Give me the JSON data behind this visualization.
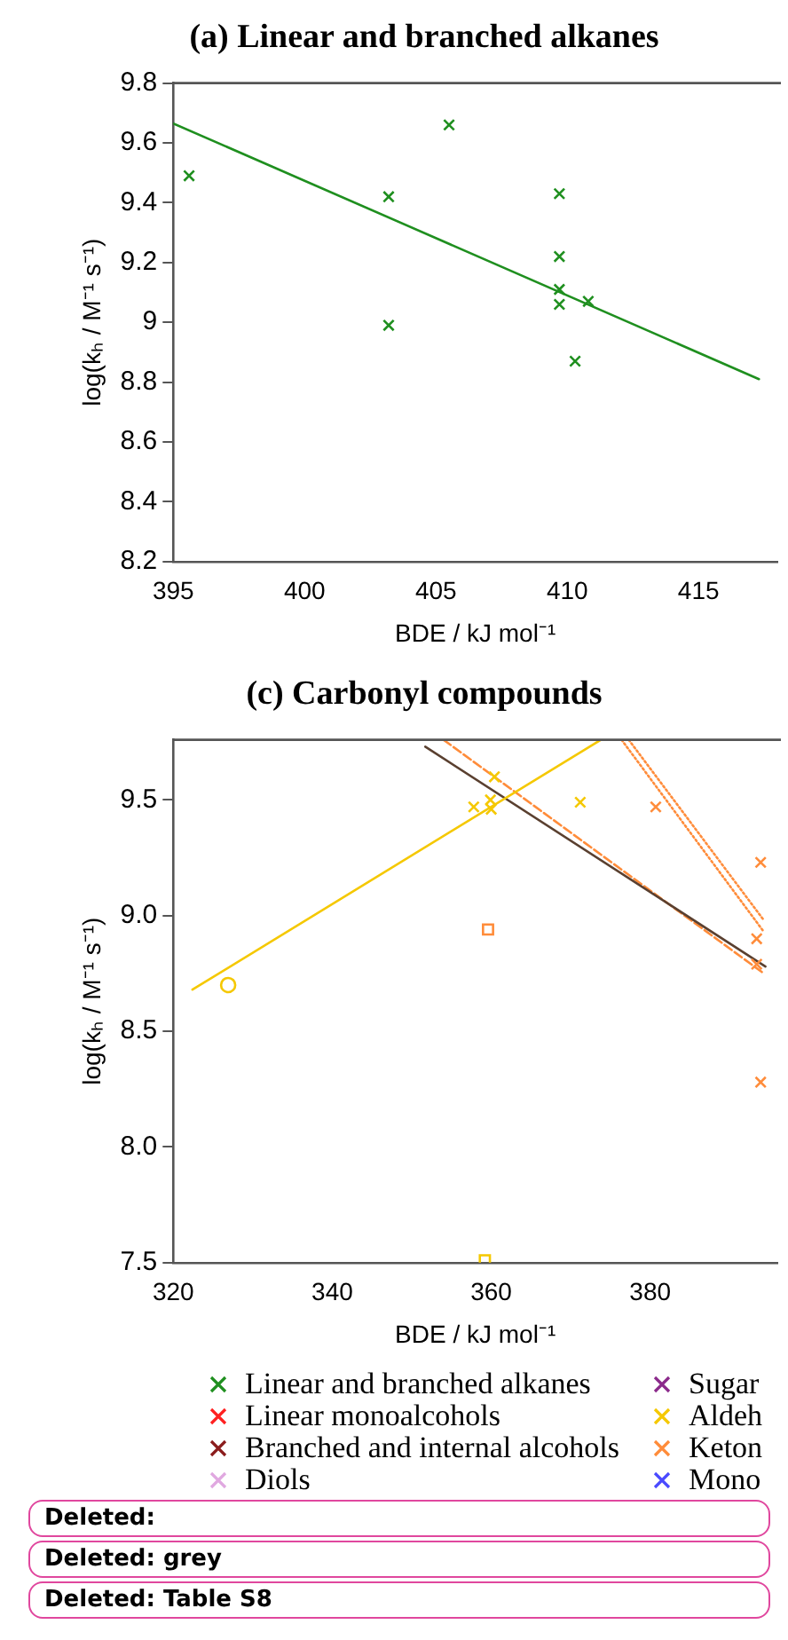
{
  "chart_data": [
    {
      "type": "scatter",
      "title": "(a) Linear and branched alkanes",
      "xlabel": "BDE / kJ mol⁻¹",
      "ylabel": "log(kₕ / M⁻¹ s⁻¹)",
      "xlim": [
        395,
        418
      ],
      "ylim": [
        8.2,
        9.8
      ],
      "xticks": [
        395,
        400,
        405,
        410,
        415
      ],
      "yticks": [
        8.2,
        8.4,
        8.6,
        8.8,
        9.0,
        9.2,
        9.4,
        9.6,
        9.8
      ],
      "series": [
        {
          "type": "scatter",
          "marker": "cross",
          "color": "#1f8f1f",
          "x": [
            395.6,
            403.2,
            403.2,
            405.5,
            409.7,
            409.7,
            409.7,
            409.7,
            410.3,
            410.8
          ],
          "values": [
            9.49,
            9.42,
            8.99,
            9.66,
            9.43,
            9.22,
            9.11,
            9.06,
            8.87,
            9.07
          ]
        },
        {
          "type": "line",
          "marker": "none",
          "line_style": "solid",
          "color": "#1f8f1f",
          "x": [
            395,
            417.3
          ],
          "values": [
            9.665,
            8.81
          ]
        }
      ]
    },
    {
      "type": "scatter",
      "title": "(c) Carbonyl compounds",
      "xlabel": "BDE / kJ mol⁻¹",
      "ylabel": "log(kₕ / M⁻¹ s⁻¹)",
      "xlim": [
        320,
        396
      ],
      "ylim": [
        7.5,
        9.76
      ],
      "xticks": [
        320,
        340,
        360,
        380
      ],
      "yticks": [
        {
          "value": 7.5,
          "label": "7.5"
        },
        {
          "value": 8,
          "label": "8.0"
        },
        {
          "value": 8.5,
          "label": "8.5"
        },
        {
          "value": 9,
          "label": "9.0"
        },
        {
          "value": 9.5,
          "label": "9.5"
        }
      ],
      "legend": "bottom",
      "annotations": [
        "Deleted:",
        "Deleted: grey",
        "Deleted: Table S8"
      ],
      "series": [
        {
          "name": "Linear and branched alkanes",
          "type": "scatter",
          "marker": "cross",
          "color": "#1f8f1f"
        },
        {
          "name": "Linear monoalcohols",
          "type": "scatter",
          "marker": "cross",
          "color": "#ff2020"
        },
        {
          "name": "Branched and internal alcohols",
          "type": "scatter",
          "marker": "cross",
          "color": "#8b1c1c"
        },
        {
          "name": "Diols",
          "type": "scatter",
          "marker": "cross",
          "color": "#e0a8e0"
        },
        {
          "name": "Sugar",
          "type": "scatter",
          "marker": "cross",
          "color": "#8b2a8b"
        },
        {
          "name": "Aldeh",
          "type": "scatter",
          "marker": "cross",
          "color": "#f5c800",
          "x": [
            357.8,
            359.9,
            360.4,
            360.0,
            371.2
          ],
          "values": [
            9.47,
            9.5,
            9.6,
            9.46,
            9.49
          ]
        },
        {
          "name": "Keton",
          "type": "scatter",
          "marker": "cross",
          "color": "#ff8c3a",
          "x": [
            380.7,
            393.9,
            393.4,
            393.4,
            393.9
          ],
          "values": [
            9.47,
            9.23,
            8.9,
            8.79,
            8.28
          ]
        },
        {
          "name": "Mono",
          "type": "scatter",
          "marker": "cross",
          "color": "#4a4aff"
        },
        {
          "type": "scatter",
          "marker": "circle",
          "color": "#f5c800",
          "x": [
            326.9
          ],
          "values": [
            8.7
          ]
        },
        {
          "type": "scatter",
          "marker": "square",
          "color": "#ff8c3a",
          "x": [
            359.6
          ],
          "values": [
            8.94
          ]
        },
        {
          "type": "scatter",
          "marker": "square",
          "color": "#f5c800",
          "x": [
            359.2
          ],
          "values": [
            7.51
          ]
        },
        {
          "type": "line",
          "marker": "none",
          "line_style": "solid",
          "color": "#f5c800",
          "x": [
            322.4,
            373.8
          ],
          "values": [
            8.68,
            9.76
          ]
        },
        {
          "type": "line",
          "marker": "none",
          "line_style": "solid",
          "color": "#5a4030",
          "x": [
            351.7,
            394.5
          ],
          "values": [
            9.73,
            8.78
          ]
        },
        {
          "type": "line",
          "marker": "none",
          "line_style": "dashed",
          "color": "#ff8c3a",
          "x": [
            354,
            394.3
          ],
          "values": [
            9.76,
            8.75
          ]
        },
        {
          "type": "line",
          "marker": "none",
          "line_style": "dotted",
          "color": "#ff8c3a",
          "x": [
            376.4,
            394.3
          ],
          "values": [
            9.76,
            8.93
          ]
        },
        {
          "type": "line",
          "marker": "none",
          "line_style": "dotted",
          "color": "#ff8c3a",
          "x": [
            377.3,
            394.3
          ],
          "values": [
            9.76,
            8.98
          ]
        }
      ]
    }
  ]
}
